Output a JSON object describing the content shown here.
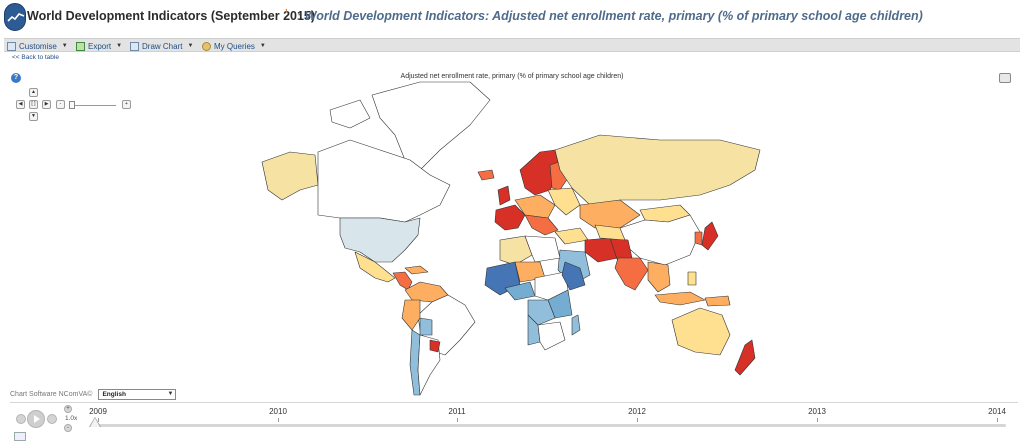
{
  "header": {
    "app_title": "World Development Indicators (September 2015)",
    "marker": "¹",
    "subtitle": ": World Development Indicators: Adjusted net enrollment rate, primary (% of primary school age children)"
  },
  "toolbar": {
    "items": [
      {
        "label": "Customise",
        "icon": "table-icon"
      },
      {
        "label": "Export",
        "icon": "export-icon"
      },
      {
        "label": "Draw Chart",
        "icon": "chart-icon"
      },
      {
        "label": "My Queries",
        "icon": "user-icon"
      }
    ],
    "back_link": "<< Back to table"
  },
  "map": {
    "caption": "Adjusted net enrollment rate, primary (% of primary school age children)",
    "colors": {
      "red": "#d73027",
      "orange_red": "#f46d43",
      "orange": "#fdae61",
      "yellow": "#fee090",
      "pale_yellow": "#f6e3a3",
      "pale_blue": "#d8e6ec",
      "light_blue": "#91bfdb",
      "mid_blue": "#74add1",
      "dark_blue": "#4575b4",
      "white": "#ffffff"
    },
    "controls": {
      "up": "▲",
      "down": "▼",
      "left": "◀",
      "right": "▶",
      "reset": "[ ]",
      "zoom_out": "-",
      "zoom_in": "+"
    }
  },
  "footer": {
    "credit": "Chart Software NComVA©",
    "language": "English"
  },
  "timeline": {
    "years": [
      "2009",
      "2010",
      "2011",
      "2012",
      "2013",
      "2014"
    ],
    "current_year": "2009",
    "speed": "1.0x"
  }
}
